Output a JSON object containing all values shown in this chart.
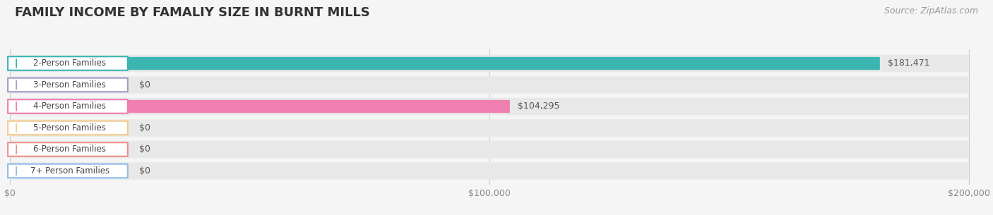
{
  "title": "FAMILY INCOME BY FAMALIY SIZE IN BURNT MILLS",
  "source": "Source: ZipAtlas.com",
  "categories": [
    "2-Person Families",
    "3-Person Families",
    "4-Person Families",
    "5-Person Families",
    "6-Person Families",
    "7+ Person Families"
  ],
  "values": [
    181471,
    0,
    104295,
    0,
    0,
    0
  ],
  "bar_colors": [
    "#3ab5b0",
    "#a09fc8",
    "#f07eb0",
    "#f5c98a",
    "#f0908a",
    "#90bce8"
  ],
  "xlim": [
    0,
    200000
  ],
  "background_color": "#f5f5f5",
  "row_bg_color": "#e8e8e8",
  "title_fontsize": 13,
  "source_fontsize": 9,
  "tick_labels": [
    "$0",
    "$100,000",
    "$200,000"
  ],
  "tick_values": [
    0,
    100000,
    200000
  ]
}
